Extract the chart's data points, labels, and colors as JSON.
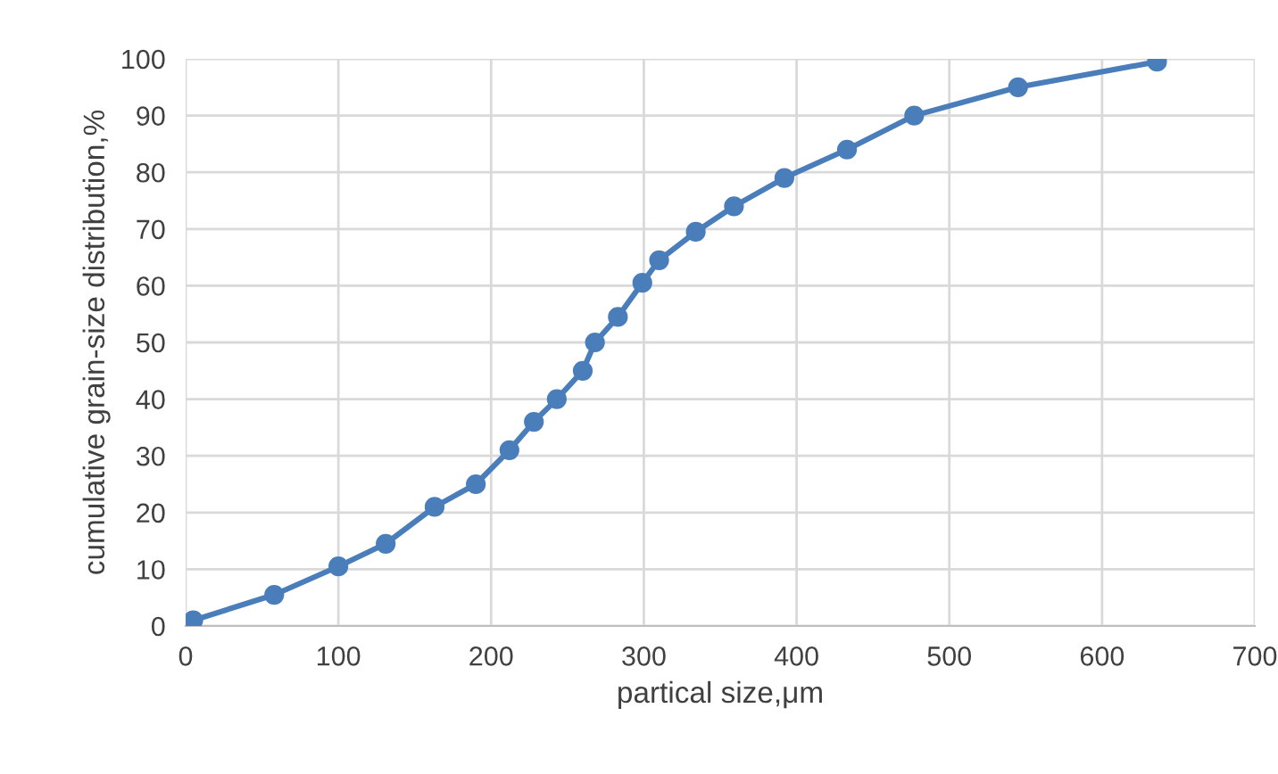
{
  "chart_data": {
    "type": "line",
    "xlabel": "partical size,μm",
    "ylabel": "cumulative grain-size distribution,%",
    "x": [
      5,
      58,
      100,
      131,
      163,
      190,
      212,
      228,
      243,
      260,
      268,
      283,
      299,
      310,
      334,
      359,
      392,
      433,
      477,
      545,
      636
    ],
    "series": [
      {
        "color": "#4a7ebb",
        "values": [
          1,
          5.5,
          10.5,
          14.5,
          21,
          25,
          31,
          36,
          40,
          45,
          50,
          54.5,
          60.5,
          64.5,
          69.5,
          74,
          79,
          84,
          90,
          95,
          99.5
        ]
      }
    ],
    "xlim": [
      0,
      700
    ],
    "xticks": [
      0,
      100,
      200,
      300,
      400,
      500,
      600,
      700
    ],
    "ylim": [
      0,
      100
    ],
    "yticks": [
      0,
      10,
      20,
      30,
      40,
      50,
      60,
      70,
      80,
      90,
      100
    ],
    "grid": true,
    "marker": "circle",
    "line_style": "solid"
  }
}
